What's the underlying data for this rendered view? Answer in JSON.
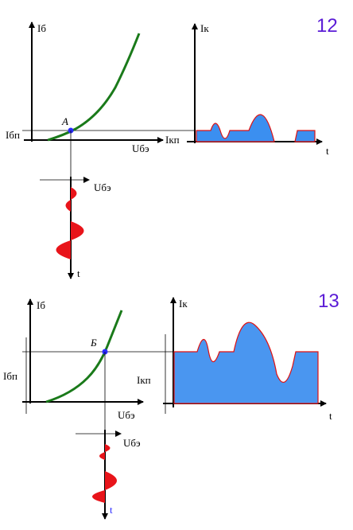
{
  "panels": [
    {
      "number": "12",
      "input_chart": {
        "y_label": "Iб",
        "bias_label": "Iбп",
        "point_label": "A",
        "x_label": "Uбэ"
      },
      "output_chart": {
        "y_label": "Iк",
        "bias_label": "Iкп",
        "x_label": "t"
      },
      "input_signal": {
        "axis_label": "Uбэ",
        "time_label": "t"
      }
    },
    {
      "number": "13",
      "input_chart": {
        "y_label": "Iб",
        "bias_label": "Iбп",
        "point_label": "Б",
        "x_label": "Uбэ"
      },
      "output_chart": {
        "y_label": "Iк",
        "bias_label": "Iкп",
        "x_label": "t"
      },
      "input_signal": {
        "axis_label": "Uбэ",
        "time_label": "t"
      }
    }
  ]
}
